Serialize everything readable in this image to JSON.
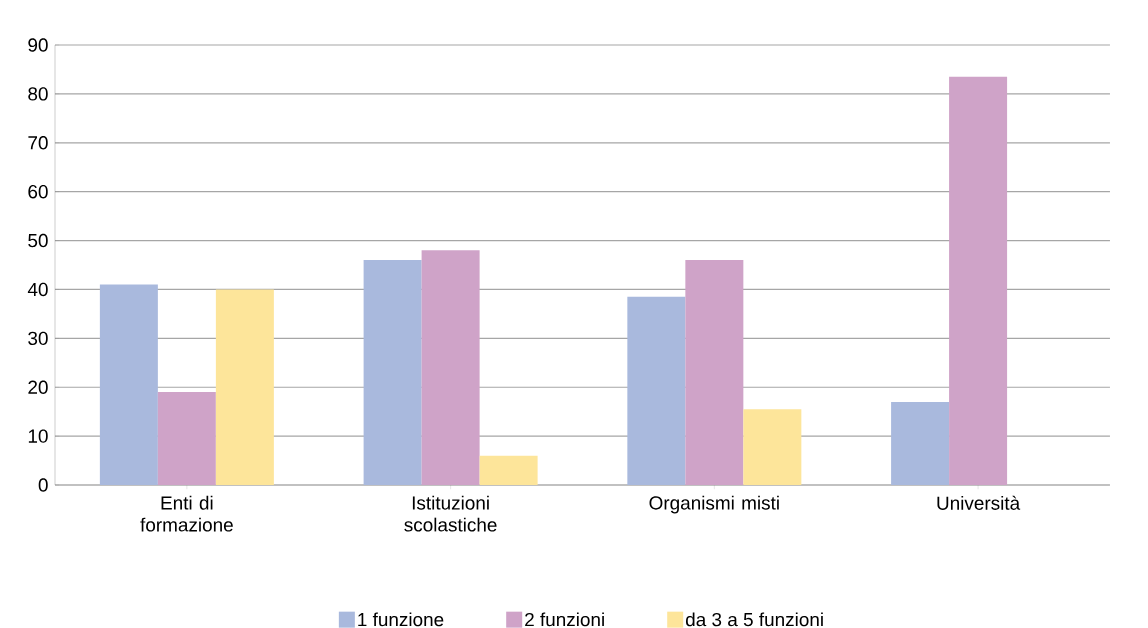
{
  "chart_data": {
    "type": "bar",
    "categories": [
      "Enti di formazione",
      "Istituzioni scolastiche",
      "Organismi misti",
      "Università"
    ],
    "series": [
      {
        "name": "1 funzione",
        "color": "#a9b9dd",
        "values": [
          41,
          46,
          38.5,
          17
        ]
      },
      {
        "name": "2 funzioni",
        "color": "#cfa3c8",
        "values": [
          19,
          48,
          46,
          83.5
        ]
      },
      {
        "name": "da 3 a 5 funzioni",
        "color": "#fde59a",
        "values": [
          40,
          6,
          15.5,
          null
        ]
      }
    ],
    "ylim": [
      0,
      90
    ],
    "yticks": [
      0,
      10,
      20,
      30,
      40,
      50,
      60,
      70,
      80,
      90
    ],
    "grid": "y",
    "legend": "bottom"
  }
}
